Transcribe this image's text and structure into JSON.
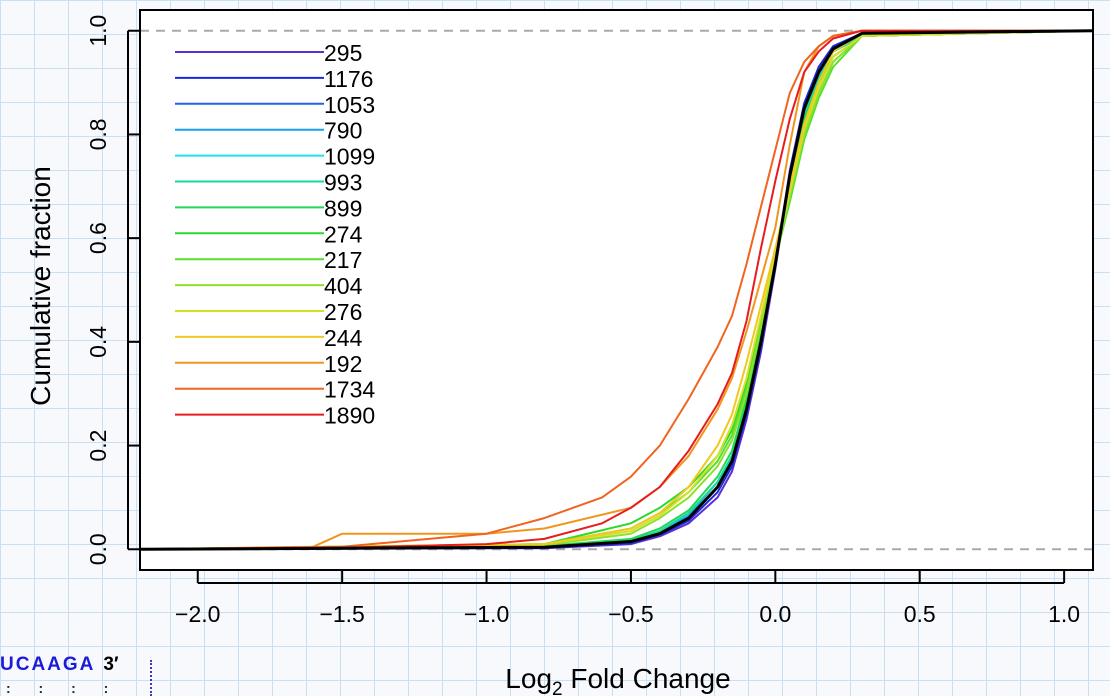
{
  "chart_data": {
    "type": "line",
    "subtype": "ecdf",
    "xlabel_base": "Log",
    "xlabel_sub": "2",
    "xlabel_rest": " Fold Change",
    "ylabel": "Cumulative fraction",
    "xlim": [
      -2.2,
      1.1
    ],
    "ylim": [
      -0.04,
      1.04
    ],
    "xticks": [
      -2.0,
      -1.5,
      -1.0,
      -0.5,
      0.0,
      0.5,
      1.0
    ],
    "xtick_labels": [
      "−2.0",
      "−1.5",
      "−1.0",
      "−0.5",
      "0.0",
      "0.5",
      "1.0"
    ],
    "yticks": [
      0.0,
      0.2,
      0.4,
      0.6,
      0.8,
      1.0
    ],
    "ytick_labels": [
      "0.0",
      "0.2",
      "0.4",
      "0.6",
      "0.8",
      "1.0"
    ],
    "reference_lines": [
      0.0,
      1.0
    ],
    "legend_position": "top-left",
    "series": [
      {
        "name": "295",
        "color": "#5b2fd6",
        "x": [
          -2.2,
          -0.8,
          -0.5,
          -0.4,
          -0.3,
          -0.2,
          -0.15,
          -0.1,
          -0.05,
          0.0,
          0.05,
          0.1,
          0.15,
          0.2,
          0.3,
          1.1
        ],
        "y": [
          0,
          0.002,
          0.01,
          0.025,
          0.05,
          0.1,
          0.15,
          0.25,
          0.38,
          0.54,
          0.72,
          0.85,
          0.93,
          0.97,
          0.995,
          1
        ]
      },
      {
        "name": "1176",
        "color": "#1a2ad9",
        "x": [
          -2.2,
          -0.8,
          -0.5,
          -0.4,
          -0.3,
          -0.2,
          -0.15,
          -0.1,
          -0.05,
          0.0,
          0.05,
          0.1,
          0.15,
          0.2,
          0.3,
          1.1
        ],
        "y": [
          0,
          0.003,
          0.012,
          0.028,
          0.055,
          0.11,
          0.16,
          0.26,
          0.39,
          0.55,
          0.73,
          0.86,
          0.93,
          0.97,
          0.995,
          1
        ]
      },
      {
        "name": "1053",
        "color": "#1f63e6",
        "x": [
          -2.2,
          -0.8,
          -0.5,
          -0.4,
          -0.3,
          -0.2,
          -0.15,
          -0.1,
          -0.05,
          0.0,
          0.05,
          0.1,
          0.15,
          0.2,
          0.3,
          1.1
        ],
        "y": [
          0,
          0.004,
          0.014,
          0.03,
          0.06,
          0.12,
          0.17,
          0.27,
          0.4,
          0.55,
          0.72,
          0.85,
          0.92,
          0.96,
          0.99,
          1
        ]
      },
      {
        "name": "790",
        "color": "#1a9ff0",
        "x": [
          -2.2,
          -0.8,
          -0.5,
          -0.4,
          -0.3,
          -0.2,
          -0.15,
          -0.1,
          -0.05,
          0.0,
          0.05,
          0.1,
          0.15,
          0.2,
          0.3,
          1.1
        ],
        "y": [
          0,
          0.005,
          0.016,
          0.033,
          0.065,
          0.13,
          0.18,
          0.28,
          0.41,
          0.55,
          0.71,
          0.84,
          0.91,
          0.96,
          0.99,
          1
        ]
      },
      {
        "name": "1099",
        "color": "#1fe0f0",
        "x": [
          -2.2,
          -0.8,
          -0.5,
          -0.4,
          -0.3,
          -0.2,
          -0.15,
          -0.1,
          -0.05,
          0.0,
          0.05,
          0.1,
          0.15,
          0.2,
          0.3,
          1.1
        ],
        "y": [
          0,
          0.004,
          0.015,
          0.03,
          0.06,
          0.12,
          0.17,
          0.27,
          0.4,
          0.55,
          0.72,
          0.85,
          0.92,
          0.96,
          0.99,
          1
        ]
      },
      {
        "name": "993",
        "color": "#1ad6a0",
        "x": [
          -2.2,
          -0.8,
          -0.5,
          -0.4,
          -0.3,
          -0.2,
          -0.15,
          -0.1,
          -0.05,
          0.0,
          0.05,
          0.1,
          0.15,
          0.2,
          0.3,
          1.1
        ],
        "y": [
          0,
          0.005,
          0.017,
          0.035,
          0.07,
          0.13,
          0.18,
          0.28,
          0.41,
          0.55,
          0.71,
          0.84,
          0.91,
          0.96,
          0.99,
          1
        ]
      },
      {
        "name": "899",
        "color": "#22d955",
        "x": [
          -2.2,
          -0.8,
          -0.5,
          -0.4,
          -0.3,
          -0.2,
          -0.15,
          -0.1,
          -0.05,
          0.0,
          0.05,
          0.1,
          0.15,
          0.2,
          0.3,
          1.1
        ],
        "y": [
          0,
          0.006,
          0.02,
          0.04,
          0.075,
          0.14,
          0.19,
          0.29,
          0.42,
          0.55,
          0.7,
          0.83,
          0.9,
          0.95,
          0.99,
          1
        ]
      },
      {
        "name": "274",
        "color": "#2bd92b",
        "x": [
          -2.2,
          -0.8,
          -0.5,
          -0.4,
          -0.3,
          -0.2,
          -0.15,
          -0.1,
          -0.05,
          0.0,
          0.05,
          0.1,
          0.15,
          0.2,
          0.3,
          1.1
        ],
        "y": [
          0,
          0.01,
          0.05,
          0.08,
          0.12,
          0.18,
          0.23,
          0.32,
          0.44,
          0.56,
          0.68,
          0.8,
          0.88,
          0.94,
          0.99,
          1
        ]
      },
      {
        "name": "217",
        "color": "#55e02a",
        "x": [
          -2.2,
          -0.8,
          -0.5,
          -0.4,
          -0.3,
          -0.2,
          -0.15,
          -0.1,
          -0.05,
          0.0,
          0.05,
          0.1,
          0.15,
          0.2,
          0.3,
          1.1
        ],
        "y": [
          0,
          0.01,
          0.04,
          0.07,
          0.11,
          0.17,
          0.22,
          0.31,
          0.43,
          0.56,
          0.67,
          0.79,
          0.87,
          0.93,
          0.99,
          1
        ]
      },
      {
        "name": "404",
        "color": "#8fe02a",
        "x": [
          -2.2,
          -0.8,
          -0.5,
          -0.4,
          -0.3,
          -0.2,
          -0.15,
          -0.1,
          -0.05,
          0.0,
          0.05,
          0.1,
          0.15,
          0.2,
          0.3,
          1.1
        ],
        "y": [
          0,
          0.008,
          0.03,
          0.06,
          0.1,
          0.16,
          0.21,
          0.3,
          0.43,
          0.56,
          0.68,
          0.8,
          0.88,
          0.94,
          0.99,
          1
        ]
      },
      {
        "name": "276",
        "color": "#d6e02a",
        "x": [
          -2.2,
          -0.8,
          -0.5,
          -0.4,
          -0.3,
          -0.2,
          -0.15,
          -0.1,
          -0.05,
          0.0,
          0.05,
          0.1,
          0.15,
          0.2,
          0.3,
          1.1
        ],
        "y": [
          0,
          0.01,
          0.035,
          0.065,
          0.11,
          0.18,
          0.24,
          0.33,
          0.45,
          0.57,
          0.69,
          0.81,
          0.89,
          0.95,
          0.99,
          1
        ]
      },
      {
        "name": "244",
        "color": "#f0c81f",
        "x": [
          -2.2,
          -0.8,
          -0.5,
          -0.4,
          -0.3,
          -0.2,
          -0.15,
          -0.1,
          -0.05,
          0.0,
          0.05,
          0.1,
          0.15,
          0.2,
          0.3,
          1.1
        ],
        "y": [
          0,
          0.01,
          0.04,
          0.07,
          0.12,
          0.2,
          0.26,
          0.36,
          0.47,
          0.58,
          0.7,
          0.82,
          0.9,
          0.96,
          0.995,
          1
        ]
      },
      {
        "name": "192",
        "color": "#f0961f",
        "x": [
          -2.2,
          -1.6,
          -1.5,
          -1.0,
          -0.8,
          -0.5,
          -0.4,
          -0.3,
          -0.2,
          -0.15,
          -0.1,
          -0.05,
          0.0,
          0.05,
          0.1,
          0.15,
          0.2,
          0.3,
          1.1
        ],
        "y": [
          0,
          0.005,
          0.03,
          0.03,
          0.04,
          0.08,
          0.12,
          0.18,
          0.27,
          0.33,
          0.42,
          0.52,
          0.62,
          0.78,
          0.92,
          0.97,
          0.99,
          1,
          1
        ]
      },
      {
        "name": "1734",
        "color": "#f0641f",
        "x": [
          -2.2,
          -1.5,
          -1.2,
          -1.0,
          -0.8,
          -0.6,
          -0.5,
          -0.4,
          -0.3,
          -0.2,
          -0.15,
          -0.1,
          -0.05,
          0.0,
          0.05,
          0.1,
          0.15,
          0.2,
          0.3,
          1.1
        ],
        "y": [
          0,
          0.005,
          0.02,
          0.03,
          0.06,
          0.1,
          0.14,
          0.2,
          0.29,
          0.39,
          0.45,
          0.55,
          0.66,
          0.77,
          0.88,
          0.94,
          0.97,
          0.99,
          1,
          1
        ]
      },
      {
        "name": "1890",
        "color": "#e81c1c",
        "x": [
          -2.2,
          -1.5,
          -1.0,
          -0.8,
          -0.6,
          -0.5,
          -0.4,
          -0.3,
          -0.2,
          -0.15,
          -0.1,
          -0.05,
          0.0,
          0.05,
          0.1,
          0.15,
          0.2,
          0.3,
          1.1
        ],
        "y": [
          0,
          0.003,
          0.01,
          0.02,
          0.05,
          0.08,
          0.12,
          0.19,
          0.28,
          0.34,
          0.44,
          0.58,
          0.71,
          0.83,
          0.92,
          0.96,
          0.985,
          1,
          1
        ]
      },
      {
        "color": "#000000",
        "x": [
          -2.2,
          -0.8,
          -0.5,
          -0.4,
          -0.3,
          -0.2,
          -0.15,
          -0.1,
          -0.05,
          0.0,
          0.05,
          0.1,
          0.15,
          0.2,
          0.3,
          1.1
        ],
        "y": [
          0,
          0.004,
          0.015,
          0.03,
          0.06,
          0.12,
          0.17,
          0.27,
          0.4,
          0.55,
          0.72,
          0.85,
          0.92,
          0.965,
          0.995,
          1
        ]
      }
    ]
  },
  "sequence_fragment": {
    "letters": "UCAAGA",
    "end_label": "3′",
    "dots": ": : : :"
  }
}
